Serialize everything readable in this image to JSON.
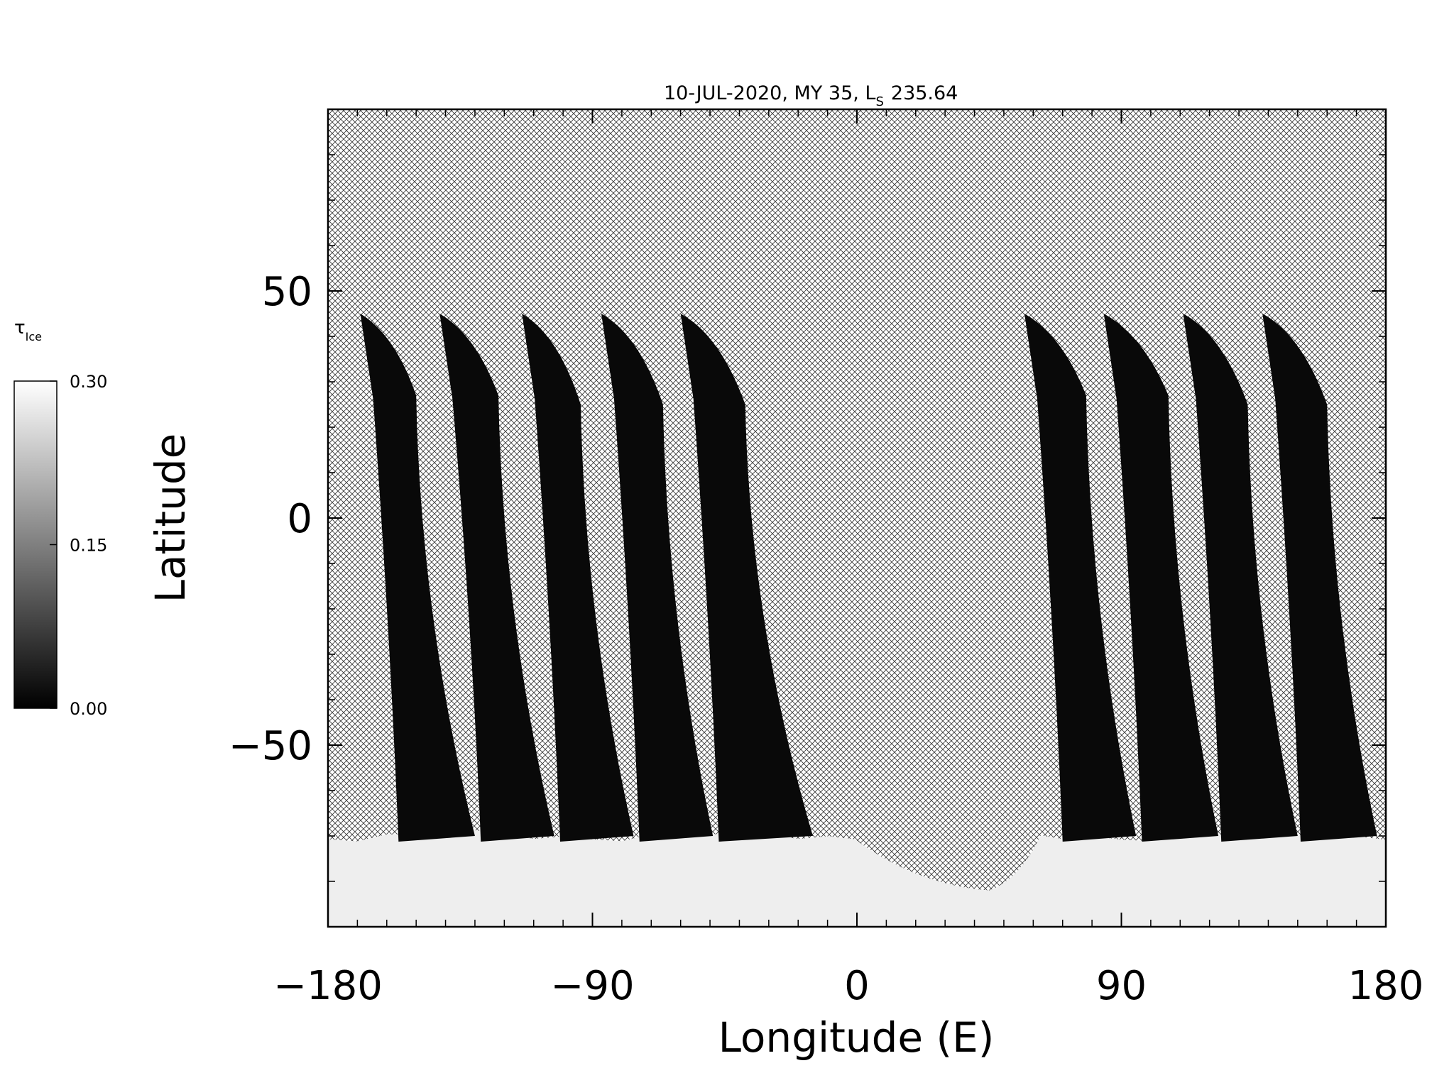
{
  "chart_data": {
    "type": "heatmap",
    "title": "10-JUL-2020, MY 35,  L",
    "title_subscript": "S",
    "title_value": "235.64",
    "xlabel": "Longitude (E)",
    "ylabel": "Latitude",
    "xlim": [
      -180,
      180
    ],
    "ylim": [
      -90,
      90
    ],
    "x_ticks": [
      -180,
      -90,
      0,
      90,
      180
    ],
    "x_tick_labels": [
      "−180",
      "−90",
      "0",
      "90",
      "180"
    ],
    "y_ticks": [
      -50,
      0,
      50
    ],
    "y_tick_labels": [
      "−50",
      "0",
      "50"
    ],
    "colorbar": {
      "label": "τ",
      "label_subscript": "Ice",
      "range": [
        0.0,
        0.3
      ],
      "ticks": [
        0.0,
        0.15,
        0.3
      ],
      "tick_labels": [
        "0.00",
        "0.15",
        "0.30"
      ],
      "colormap": "grayscale",
      "low_color": "#000000",
      "high_color": "#ffffff"
    },
    "no_data_fill": "cross-hatched",
    "swaths": [
      {
        "lon_top": -169,
        "lat_top": 45,
        "lon_top_right": -150,
        "lat_shoulder": 27,
        "lon_bottom": -156,
        "lon_bottom_right": -130
      },
      {
        "lon_top": -142,
        "lat_top": 45,
        "lon_top_right": -122,
        "lat_shoulder": 27,
        "lon_bottom": -128,
        "lon_bottom_right": -103
      },
      {
        "lon_top": -114,
        "lat_top": 45,
        "lon_top_right": -94,
        "lat_shoulder": 25,
        "lon_bottom": -101,
        "lon_bottom_right": -76
      },
      {
        "lon_top": -87,
        "lat_top": 45,
        "lon_top_right": -66,
        "lat_shoulder": 25,
        "lon_bottom": -74,
        "lon_bottom_right": -49
      },
      {
        "lon_top": -60,
        "lat_top": 45,
        "lon_top_right": -38,
        "lat_shoulder": 25,
        "lon_bottom": -47,
        "lon_bottom_right": -15
      },
      {
        "lon_top": 57,
        "lat_top": 45,
        "lon_top_right": 78,
        "lat_shoulder": 27,
        "lon_bottom": 70,
        "lon_bottom_right": 95
      },
      {
        "lon_top": 84,
        "lat_top": 45,
        "lon_top_right": 106,
        "lat_shoulder": 27,
        "lon_bottom": 97,
        "lon_bottom_right": 123
      },
      {
        "lon_top": 111,
        "lat_top": 45,
        "lon_top_right": 133,
        "lat_shoulder": 25,
        "lon_bottom": 124,
        "lon_bottom_right": 150
      },
      {
        "lon_top": 138,
        "lat_top": 45,
        "lon_top_right": 160,
        "lat_shoulder": 25,
        "lon_bottom": 151,
        "lon_bottom_right": 177
      }
    ],
    "swath_lat_bottom": -70,
    "swath_tau": 0.01,
    "south_polar_cap": {
      "lat_edge": -70,
      "tau": 0.28
    },
    "grid": false,
    "legend": "colorbar-left"
  }
}
